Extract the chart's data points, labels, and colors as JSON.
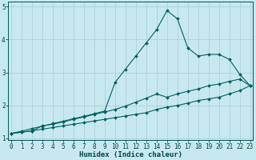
{
  "xlabel": "Humidex (Indice chaleur)",
  "bg_color": "#c8e8f0",
  "grid_color": "#aaccd8",
  "line_color": "#006060",
  "xlim_min": -0.3,
  "xlim_max": 23.3,
  "ylim_min": 0.95,
  "ylim_max": 5.15,
  "xticks": [
    0,
    1,
    2,
    3,
    4,
    5,
    6,
    7,
    8,
    9,
    10,
    11,
    12,
    13,
    14,
    15,
    16,
    17,
    18,
    19,
    20,
    21,
    22,
    23
  ],
  "yticks": [
    1,
    2,
    3,
    4,
    5
  ],
  "line1_y": [
    1.15,
    1.22,
    1.3,
    1.37,
    1.45,
    1.52,
    1.6,
    1.67,
    1.75,
    1.83,
    2.7,
    3.1,
    3.5,
    3.9,
    4.3,
    4.88,
    4.63,
    3.75,
    3.5,
    3.55,
    3.55,
    3.4,
    2.95,
    2.6
  ],
  "line2_y": [
    1.15,
    1.19,
    1.23,
    1.38,
    1.43,
    1.5,
    1.58,
    1.65,
    1.73,
    1.8,
    1.88,
    1.98,
    2.1,
    2.22,
    2.35,
    2.25,
    2.35,
    2.43,
    2.5,
    2.6,
    2.65,
    2.73,
    2.8,
    2.6
  ],
  "line3_y": [
    1.15,
    1.19,
    1.23,
    1.28,
    1.33,
    1.38,
    1.43,
    1.48,
    1.53,
    1.58,
    1.63,
    1.68,
    1.73,
    1.78,
    1.88,
    1.95,
    2.0,
    2.07,
    2.15,
    2.2,
    2.25,
    2.35,
    2.45,
    2.6
  ],
  "xlabel_fontsize": 6.5,
  "tick_fontsize": 5.5
}
